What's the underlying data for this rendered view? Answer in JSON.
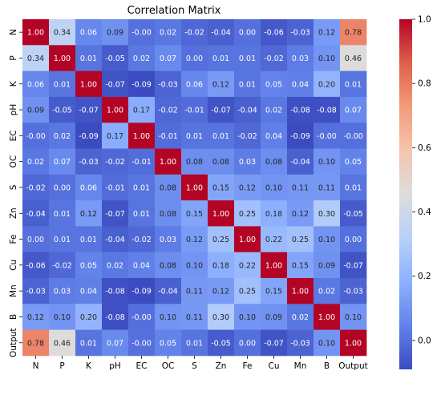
{
  "chart_data": {
    "type": "heatmap",
    "title": "Correlation Matrix",
    "xlabel": "",
    "ylabel": "",
    "labels": [
      "N",
      "P",
      "K",
      "pH",
      "EC",
      "OC",
      "S",
      "Zn",
      "Fe",
      "Cu",
      "Mn",
      "B",
      "Output"
    ],
    "values": [
      [
        1.0,
        0.34,
        0.06,
        0.09,
        -0.0,
        0.02,
        -0.02,
        -0.04,
        0.0,
        -0.06,
        -0.03,
        0.12,
        0.78
      ],
      [
        0.34,
        1.0,
        0.01,
        -0.05,
        0.02,
        0.07,
        0.0,
        0.01,
        0.01,
        -0.02,
        0.03,
        0.1,
        0.46
      ],
      [
        0.06,
        0.01,
        1.0,
        -0.07,
        -0.09,
        -0.03,
        0.06,
        0.12,
        0.01,
        0.05,
        0.04,
        0.2,
        0.01
      ],
      [
        0.09,
        -0.05,
        -0.07,
        1.0,
        0.17,
        -0.02,
        -0.01,
        -0.07,
        -0.04,
        0.02,
        -0.08,
        -0.08,
        0.07
      ],
      [
        -0.0,
        0.02,
        -0.09,
        0.17,
        1.0,
        -0.01,
        0.01,
        0.01,
        -0.02,
        0.04,
        -0.09,
        -0.0,
        -0.0
      ],
      [
        0.02,
        0.07,
        -0.03,
        -0.02,
        -0.01,
        1.0,
        0.08,
        0.08,
        0.03,
        0.08,
        -0.04,
        0.1,
        0.05
      ],
      [
        -0.02,
        0.0,
        0.06,
        -0.01,
        0.01,
        0.08,
        1.0,
        0.15,
        0.12,
        0.1,
        0.11,
        0.11,
        0.01
      ],
      [
        -0.04,
        0.01,
        0.12,
        -0.07,
        0.01,
        0.08,
        0.15,
        1.0,
        0.25,
        0.18,
        0.12,
        0.3,
        -0.05
      ],
      [
        0.0,
        0.01,
        0.01,
        -0.04,
        -0.02,
        0.03,
        0.12,
        0.25,
        1.0,
        0.22,
        0.25,
        0.1,
        0.0
      ],
      [
        -0.06,
        -0.02,
        0.05,
        0.02,
        0.04,
        0.08,
        0.1,
        0.18,
        0.22,
        1.0,
        0.15,
        0.09,
        -0.07
      ],
      [
        -0.03,
        0.03,
        0.04,
        -0.08,
        -0.09,
        -0.04,
        0.11,
        0.12,
        0.25,
        0.15,
        1.0,
        0.02,
        -0.03
      ],
      [
        0.12,
        0.1,
        0.2,
        -0.08,
        -0.0,
        0.1,
        0.11,
        0.3,
        0.1,
        0.09,
        0.02,
        1.0,
        0.1
      ],
      [
        0.78,
        0.46,
        0.01,
        0.07,
        -0.0,
        0.05,
        0.01,
        -0.05,
        0.0,
        -0.07,
        -0.03,
        0.1,
        1.0
      ]
    ],
    "colormap": "coolwarm",
    "color_range": [
      -0.09,
      1.0
    ],
    "colorbar_ticks": [
      0.0,
      0.2,
      0.4,
      0.6,
      0.8,
      1.0
    ],
    "colorbar_tick_labels": [
      "0.0",
      "0.2",
      "0.4",
      "0.6",
      "0.8",
      "1.0"
    ],
    "annotations": "cell values shown with 2 decimals",
    "grid": false,
    "legend": "colorbar right"
  }
}
